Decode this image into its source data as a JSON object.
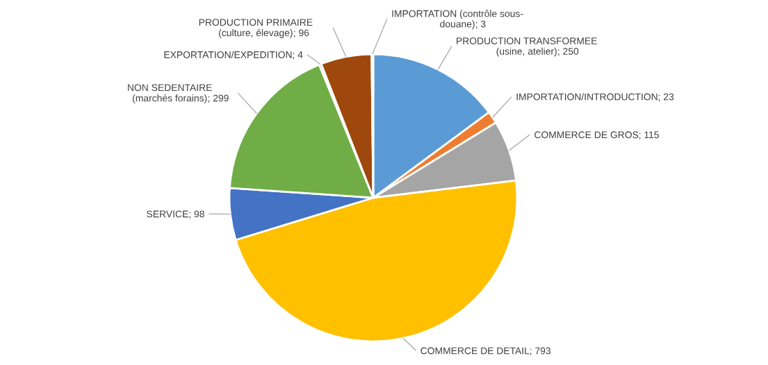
{
  "chart_data": {
    "type": "pie",
    "categories": [
      "PRODUCTION TRANSFORMEE\n(usine, atelier)",
      "IMPORTATION/INTRODUCTION",
      "COMMERCE DE GROS",
      "COMMERCE DE DETAIL",
      "SERVICE",
      "NON SEDENTAIRE\n(marchés forains)",
      "EXPORTATION/EXPEDITION",
      "PRODUCTION PRIMAIRE\n(culture, élevage)",
      "IMPORTATION (contrôle sous-\ndouane)"
    ],
    "values": [
      250,
      23,
      115,
      793,
      98,
      299,
      4,
      96,
      3
    ],
    "colors": [
      "#5b9bd5",
      "#ed7d31",
      "#a5a5a5",
      "#ffc000",
      "#4472c4",
      "#70ad47",
      "#264478",
      "#9e480e",
      "#636363"
    ],
    "value_labels": [
      "; 250",
      "; 23",
      "; 115",
      "; 793",
      "; 98",
      "; 299",
      "; 4",
      "; 96",
      "; 3"
    ]
  }
}
